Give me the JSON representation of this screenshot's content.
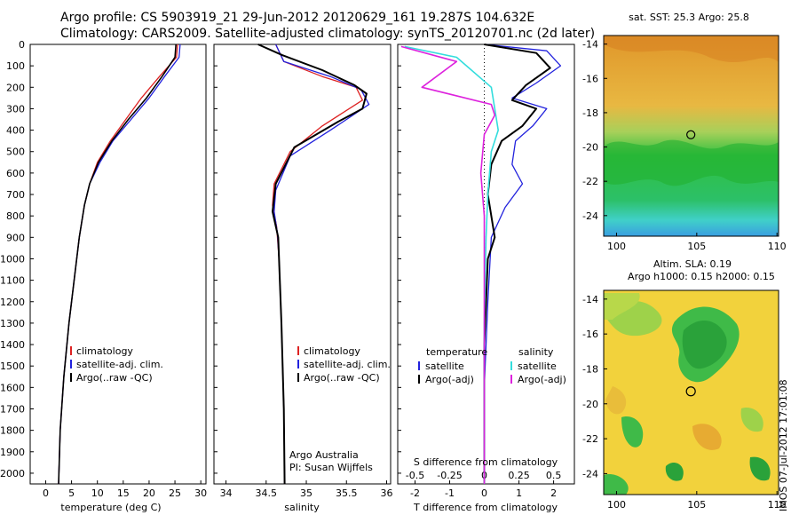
{
  "titles": {
    "line1": "Argo profile: CS 5903919_21 29-Jun-2012 20120629_161 19.287S 104.632E",
    "line2": "Climatology: CARS2009. Satellite-adjusted climatology: synTS_20120701.nc (2d later)"
  },
  "colors": {
    "climatology": "#dd2222",
    "satellite": "#2222dd",
    "argo": "#000000",
    "cyan": "#33dddd",
    "magenta": "#dd22dd"
  },
  "depth_ticks": [
    "0",
    "100",
    "200",
    "300",
    "400",
    "500",
    "600",
    "700",
    "800",
    "900",
    "1000",
    "1100",
    "1200",
    "1300",
    "1400",
    "1500",
    "1600",
    "1700",
    "1800",
    "1900",
    "2000"
  ],
  "legend_main": [
    "climatology",
    "satellite-adj. clim.",
    "Argo(..raw -QC)"
  ],
  "diff_legend": {
    "temperature_header": "temperature",
    "salinity_header": "salinity",
    "items": [
      "satellite",
      "Argo(-adj)"
    ]
  },
  "notes": {
    "institution": "Argo Australia",
    "pi": "PI: Susan Wijffels"
  },
  "chart_data": [
    {
      "type": "line",
      "xlabel": "temperature (deg C)",
      "xticks": [
        "0",
        "5",
        "10",
        "15",
        "20",
        "25",
        "30"
      ],
      "xlim": [
        -3,
        31
      ],
      "ylim": [
        2050,
        0
      ],
      "series": [
        {
          "name": "climatology",
          "x": [
            25.5,
            25.3,
            22,
            18.5,
            15.5,
            12.5,
            10,
            8.5,
            7.5,
            6.5,
            5.5,
            4.5,
            3.5,
            2.8,
            2.5
          ],
          "y": [
            0,
            60,
            150,
            250,
            350,
            450,
            550,
            650,
            750,
            900,
            1100,
            1300,
            1550,
            1800,
            2050
          ]
        },
        {
          "name": "satellite-adj. clim.",
          "x": [
            26,
            25.8,
            23,
            20,
            16.5,
            13,
            10.5,
            8.5,
            7.5,
            6.5,
            5.5,
            4.5,
            3.5,
            2.8,
            2.5
          ],
          "y": [
            0,
            60,
            150,
            250,
            350,
            450,
            550,
            650,
            750,
            900,
            1100,
            1300,
            1550,
            1800,
            2050
          ]
        },
        {
          "name": "Argo(..raw -QC)",
          "x": [
            25.2,
            25.0,
            22.5,
            19.5,
            16,
            12.8,
            10.2,
            8.5,
            7.5,
            6.5,
            5.5,
            4.5,
            3.5,
            2.8,
            2.5
          ],
          "y": [
            0,
            60,
            150,
            250,
            350,
            450,
            550,
            650,
            750,
            900,
            1100,
            1300,
            1550,
            1800,
            2050
          ]
        }
      ]
    },
    {
      "type": "line",
      "xlabel": "salinity",
      "xticks": [
        "34",
        "34.5",
        "35",
        "35.5",
        "36"
      ],
      "xlim": [
        33.85,
        36.05
      ],
      "ylim": [
        2050,
        0
      ],
      "series": [
        {
          "name": "climatology",
          "x": [
            34.62,
            34.72,
            35.2,
            35.62,
            35.7,
            35.2,
            34.8,
            34.6,
            34.58,
            34.63,
            34.66,
            34.69,
            34.72,
            34.73
          ],
          "y": [
            0,
            80,
            150,
            200,
            260,
            380,
            500,
            650,
            750,
            850,
            1000,
            1300,
            1700,
            2050
          ]
        },
        {
          "name": "satellite-adj. clim.",
          "x": [
            34.62,
            34.72,
            35.3,
            35.68,
            35.78,
            35.3,
            34.8,
            34.62,
            34.6,
            34.64,
            34.66,
            34.69,
            34.72,
            34.73
          ],
          "y": [
            0,
            80,
            150,
            210,
            280,
            400,
            520,
            680,
            780,
            880,
            1000,
            1300,
            1700,
            2050
          ]
        },
        {
          "name": "Argo(..raw -QC)",
          "x": [
            34.4,
            34.7,
            35.2,
            35.6,
            35.75,
            35.7,
            35.4,
            34.85,
            34.62,
            34.58,
            34.65,
            34.66,
            34.69,
            34.72,
            34.73
          ],
          "y": [
            0,
            50,
            120,
            190,
            230,
            300,
            360,
            480,
            650,
            780,
            900,
            1000,
            1300,
            1700,
            2050
          ]
        }
      ]
    },
    {
      "type": "line",
      "xlabel": "T difference from climatology",
      "xlabel_top": "S difference from climatology",
      "xticks": [
        "-2",
        "-1",
        "0",
        "1",
        "2"
      ],
      "xticks_top": [
        "-0.5",
        "-0.25",
        "0",
        "0.25",
        "0.5"
      ],
      "xlim": [
        -2.5,
        2.6
      ],
      "ylim": [
        2050,
        0
      ],
      "series": [
        {
          "name": "temperature satellite",
          "x": [
            0,
            1.8,
            2.2,
            1.5,
            0.8,
            1.8,
            1.4,
            0.9,
            0.8,
            1.1,
            0.6,
            0.2,
            0.1,
            0,
            0
          ],
          "y": [
            0,
            30,
            100,
            180,
            250,
            300,
            380,
            450,
            560,
            650,
            760,
            900,
            1200,
            1600,
            2050
          ]
        },
        {
          "name": "temperature Argo(-adj)",
          "x": [
            0,
            1.5,
            1.9,
            1.2,
            0.8,
            1.5,
            1.1,
            0.5,
            0.2,
            0.1,
            0.3,
            0.1,
            0,
            0
          ],
          "y": [
            0,
            40,
            110,
            190,
            260,
            300,
            380,
            450,
            560,
            700,
            900,
            1000,
            1400,
            2050
          ]
        },
        {
          "name": "salinity satellite",
          "x": [
            -2.3,
            -0.8,
            0.2,
            0.3,
            0.4,
            0.2,
            0.1,
            0.05,
            0,
            0
          ],
          "y": [
            10,
            60,
            200,
            300,
            400,
            500,
            700,
            900,
            1300,
            2050
          ]
        },
        {
          "name": "salinity Argo(-adj)",
          "x": [
            -2.4,
            -0.8,
            -1.8,
            0.2,
            0.3,
            0,
            -0.1,
            0,
            0,
            0
          ],
          "y": [
            10,
            80,
            200,
            280,
            330,
            420,
            600,
            800,
            1200,
            2050
          ]
        }
      ]
    }
  ],
  "maps": {
    "sst": {
      "title": "sat. SST: 25.3 Argo: 25.8",
      "xticks": [
        "100",
        "105",
        "110"
      ],
      "yticks": [
        "-14",
        "-16",
        "-18",
        "-20",
        "-22",
        "-24"
      ],
      "marker": {
        "lon": 104.632,
        "lat": -19.287
      }
    },
    "sla": {
      "title1": "Altim. SLA: 0.19",
      "title2": "Argo h1000: 0.15 h2000: 0.15",
      "xticks": [
        "100",
        "105",
        "110"
      ],
      "yticks": [
        "-14",
        "-16",
        "-18",
        "-20",
        "-22",
        "-24"
      ],
      "marker": {
        "lon": 104.632,
        "lat": -19.287
      }
    }
  },
  "side_label": "IMOS 07-Jul-2012 17:01:08"
}
